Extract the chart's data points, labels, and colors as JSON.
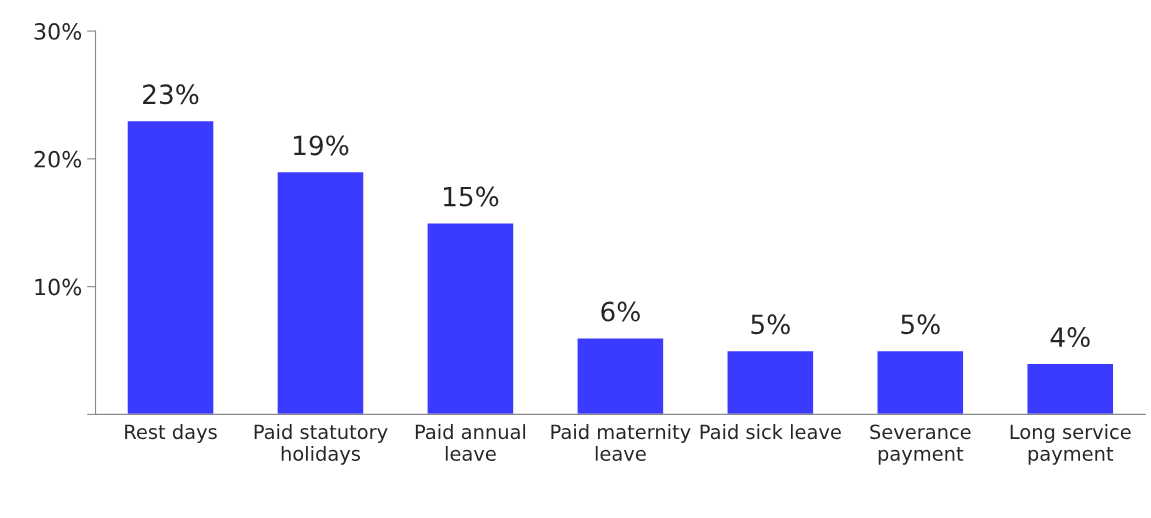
{
  "chart_data": {
    "type": "bar",
    "categories": [
      "Rest days",
      "Paid statutory holidays",
      "Paid annual leave",
      "Paid maternity leave",
      "Paid sick leave",
      "Severance payment",
      "Long service payment"
    ],
    "values": [
      23,
      19,
      15,
      6,
      5,
      5,
      4
    ],
    "color": "#3b3bff",
    "value_labels": [
      "23%",
      "19%",
      "15%",
      "6%",
      "5%",
      "5%",
      "4%"
    ],
    "ylim": [
      0,
      30
    ],
    "yticks": [
      {
        "value": 0,
        "label": null
      },
      {
        "value": 10,
        "label": "10%"
      },
      {
        "value": 20,
        "label": "20%"
      },
      {
        "value": 30,
        "label": "30%"
      }
    ],
    "grid": false,
    "legend": false
  }
}
